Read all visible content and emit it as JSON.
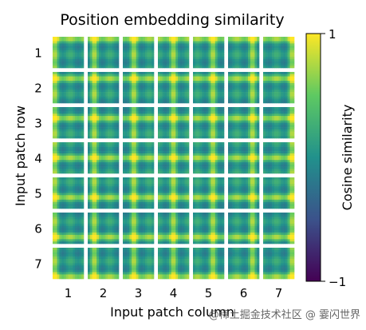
{
  "chart_data": {
    "type": "heatmap",
    "title": "Position embedding similarity",
    "xlabel": "Input patch column",
    "ylabel": "Input patch row",
    "row_tick_labels": [
      "1",
      "2",
      "3",
      "4",
      "5",
      "6",
      "7"
    ],
    "col_tick_labels": [
      "1",
      "2",
      "3",
      "4",
      "5",
      "6",
      "7"
    ],
    "grid": {
      "rows": 7,
      "cols": 7,
      "cells_per_tile": 14
    },
    "colorbar": {
      "label": "Cosine similarity",
      "min": -1,
      "max": 1,
      "tick_labels": [
        "1",
        "−1"
      ],
      "colormap": "viridis"
    },
    "colors": [
      "#440154",
      "#3b528b",
      "#21918c",
      "#5ec962",
      "#fde725"
    ],
    "similarity_model": {
      "base": 0.05,
      "row_match": 0.55,
      "col_match": 0.55
    }
  },
  "watermark": "@稀土掘金技术社区 @ 霎闪世界"
}
